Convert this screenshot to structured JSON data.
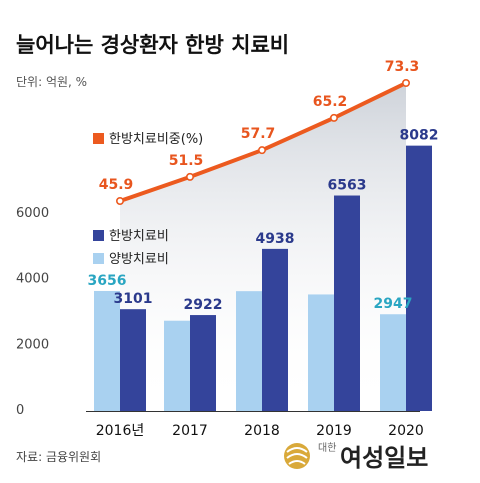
{
  "title": "늘어나는 경상환자 한방 치료비",
  "unit": "단위: 억원, %",
  "source": "자료: 금융위원회",
  "logo": {
    "small": "대한",
    "text": "여성일보"
  },
  "colors": {
    "light": "#a9d1f0",
    "dark": "#34449b",
    "line": "#ec5a1f",
    "area": "#d7dce3"
  },
  "chart_data": {
    "type": "bar",
    "categories": [
      "2016년",
      "2017",
      "2018",
      "2019",
      "2020"
    ],
    "series": [
      {
        "name": "양방치료비",
        "values": [
          3656,
          2750,
          3650,
          3550,
          2947
        ],
        "labels": [
          "3656",
          "",
          "",
          "",
          "2947"
        ]
      },
      {
        "name": "한방치료비",
        "values": [
          3101,
          2922,
          4938,
          6563,
          8082
        ],
        "labels": [
          "3101",
          "2922",
          "4938",
          "6563",
          "8082"
        ]
      },
      {
        "name": "한방치료비중(%)",
        "type": "line",
        "values": [
          45.9,
          51.5,
          57.7,
          65.2,
          73.3
        ],
        "labels": [
          "45.9",
          "51.5",
          "57.7",
          "65.2",
          "73.3"
        ]
      }
    ],
    "yticks": [
      "0",
      "2000",
      "4000",
      "6000"
    ],
    "ylim": [
      0,
      8500
    ]
  }
}
